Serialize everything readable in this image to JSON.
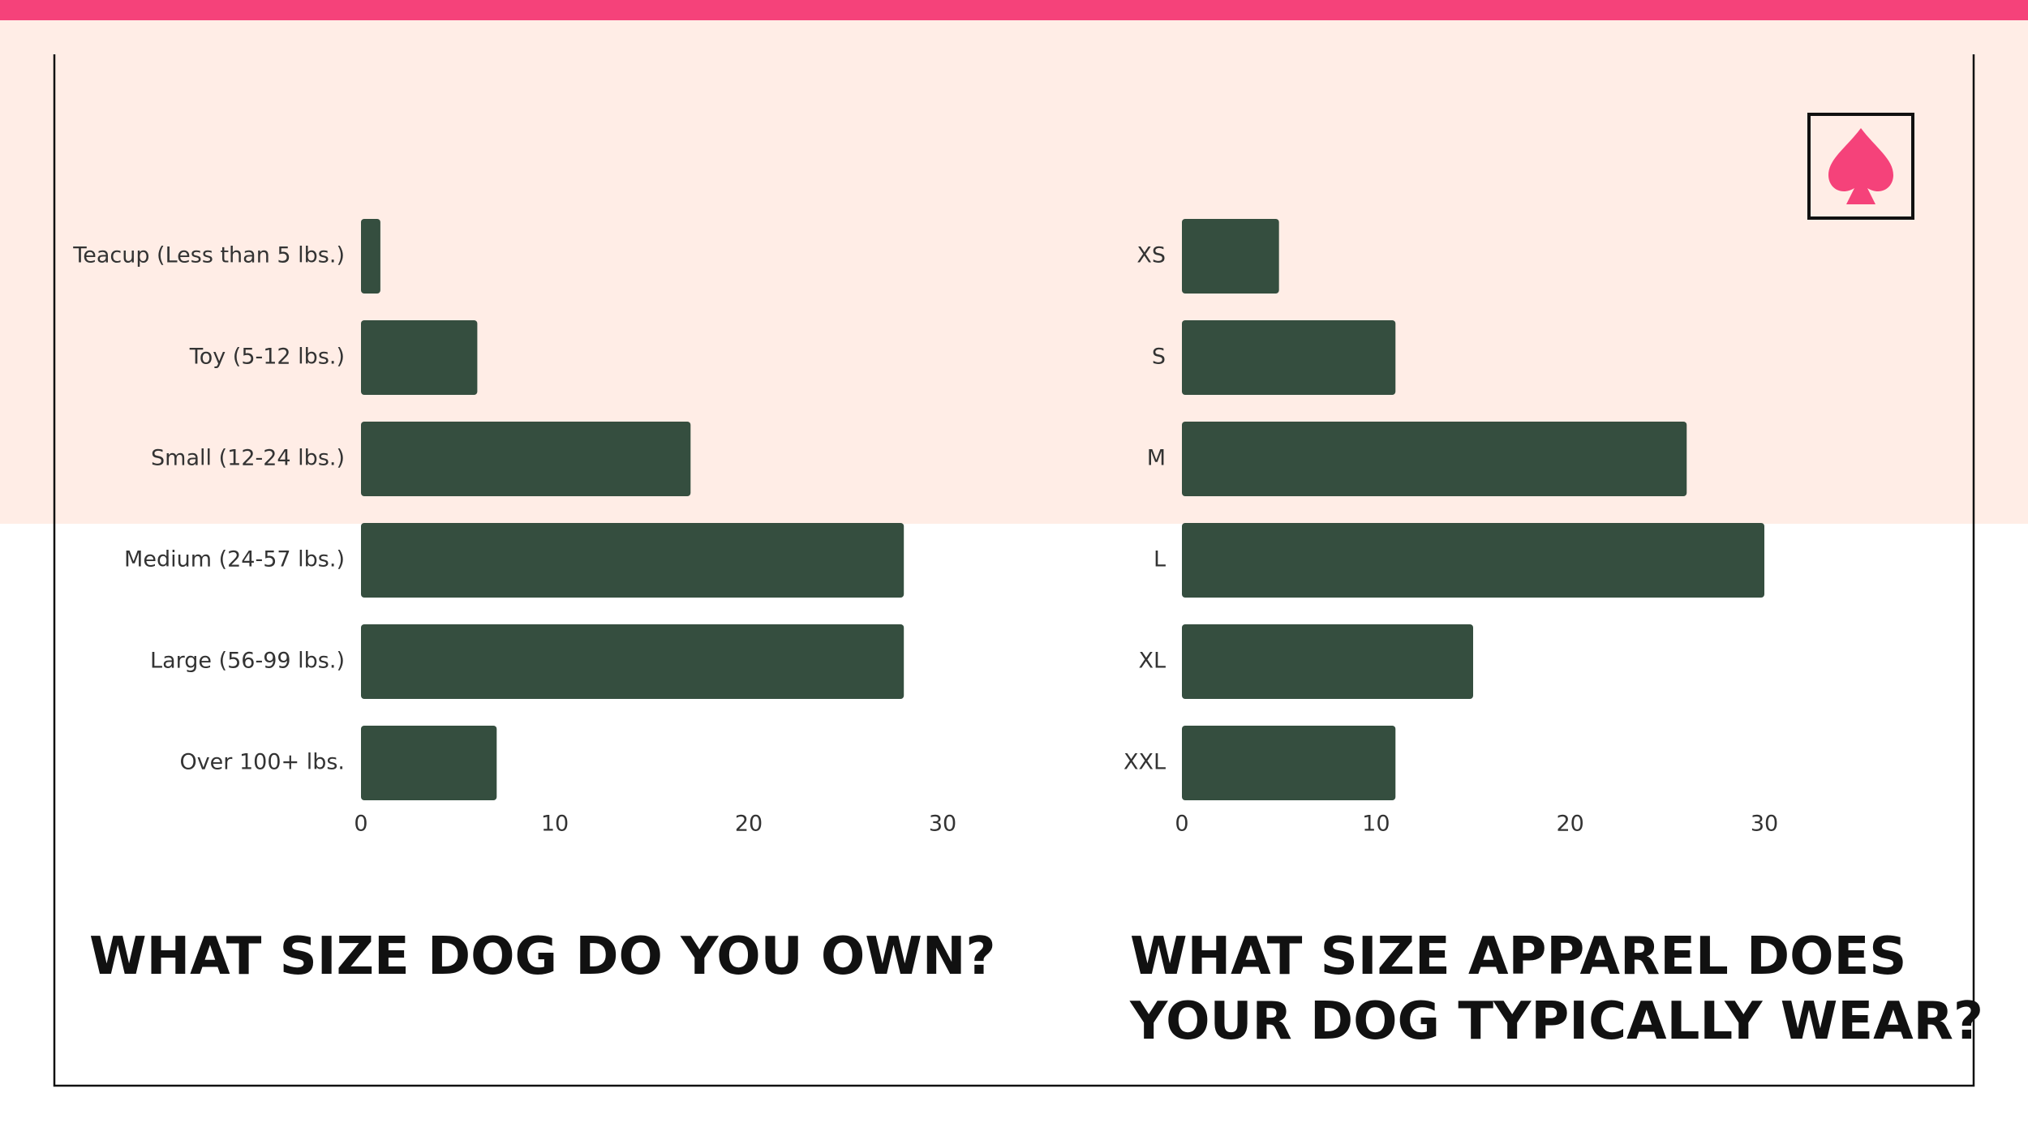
{
  "chart_data": [
    {
      "type": "bar",
      "orientation": "horizontal",
      "title": "WHAT SIZE DOG DO YOU OWN?",
      "categories": [
        "Teacup (Less than 5 lbs.)",
        "Toy (5-12 lbs.)",
        "Small (12-24 lbs.)",
        "Medium (24-57 lbs.)",
        "Large (56-99 lbs.)",
        "Over 100+ lbs."
      ],
      "values": [
        1,
        6,
        17,
        28,
        28,
        7
      ],
      "color": "#354e3f",
      "xlim": [
        0,
        30
      ],
      "xticks": [
        0,
        10,
        20,
        30
      ]
    },
    {
      "type": "bar",
      "orientation": "horizontal",
      "title": "WHAT SIZE APPAREL DOES YOUR DOG TYPICALLY WEAR?",
      "categories": [
        "XS",
        "S",
        "M",
        "L",
        "XL",
        "XXL"
      ],
      "values": [
        5,
        11,
        26,
        30,
        15,
        11
      ],
      "color": "#354e3f",
      "xlim": [
        0,
        30
      ],
      "xticks": [
        0,
        10,
        20,
        30
      ]
    }
  ]
}
